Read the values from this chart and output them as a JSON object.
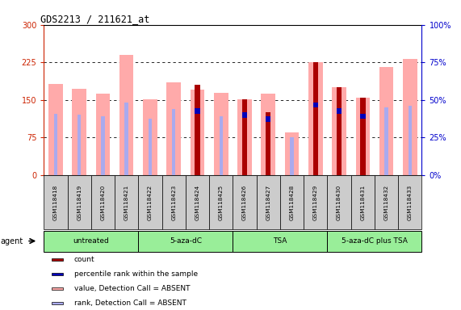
{
  "title": "GDS2213 / 211621_at",
  "samples": [
    "GSM118418",
    "GSM118419",
    "GSM118420",
    "GSM118421",
    "GSM118422",
    "GSM118423",
    "GSM118424",
    "GSM118425",
    "GSM118426",
    "GSM118427",
    "GSM118428",
    "GSM118429",
    "GSM118430",
    "GSM118431",
    "GSM118432",
    "GSM118433"
  ],
  "pink_bar_heights": [
    182,
    173,
    162,
    240,
    152,
    185,
    170,
    165,
    152,
    163,
    85,
    225,
    175,
    155,
    215,
    232
  ],
  "red_bar_heights": [
    0,
    0,
    0,
    0,
    0,
    0,
    180,
    0,
    152,
    125,
    0,
    225,
    175,
    155,
    0,
    0
  ],
  "lavender_bar_heights": [
    122,
    120,
    118,
    145,
    113,
    132,
    128,
    118,
    0,
    0,
    75,
    0,
    0,
    0,
    135,
    138
  ],
  "blue_marker_y": [
    0,
    0,
    0,
    0,
    0,
    0,
    128,
    0,
    120,
    112,
    0,
    140,
    128,
    118,
    0,
    0
  ],
  "groups": [
    {
      "label": "untreated",
      "start": 0,
      "end": 4
    },
    {
      "label": "5-aza-dC",
      "start": 4,
      "end": 8
    },
    {
      "label": "TSA",
      "start": 8,
      "end": 12
    },
    {
      "label": "5-aza-dC plus TSA",
      "start": 12,
      "end": 16
    }
  ],
  "ylim_left": [
    0,
    300
  ],
  "ylim_right": [
    0,
    100
  ],
  "yticks_left": [
    0,
    75,
    150,
    225,
    300
  ],
  "yticks_right": [
    0,
    25,
    50,
    75,
    100
  ],
  "colors": {
    "pink_bar": "#ffaaaa",
    "red_bar": "#aa0000",
    "lavender_bar": "#aaaaee",
    "blue_dot": "#0000bb",
    "group_box": "#cccccc",
    "group_fill": "#99ee99",
    "axis_left": "#cc2200",
    "axis_right": "#0000cc",
    "background": "#ffffff"
  },
  "legend_items": [
    {
      "label": "count",
      "color": "#aa0000"
    },
    {
      "label": "percentile rank within the sample",
      "color": "#0000bb"
    },
    {
      "label": "value, Detection Call = ABSENT",
      "color": "#ffaaaa"
    },
    {
      "label": "rank, Detection Call = ABSENT",
      "color": "#aaaaee"
    }
  ],
  "group_labels": [
    "untreated",
    "5-aza-dC",
    "TSA",
    "5-aza-dC plus TSA"
  ],
  "group_ranges": [
    [
      0,
      4
    ],
    [
      4,
      8
    ],
    [
      8,
      12
    ],
    [
      12,
      16
    ]
  ]
}
